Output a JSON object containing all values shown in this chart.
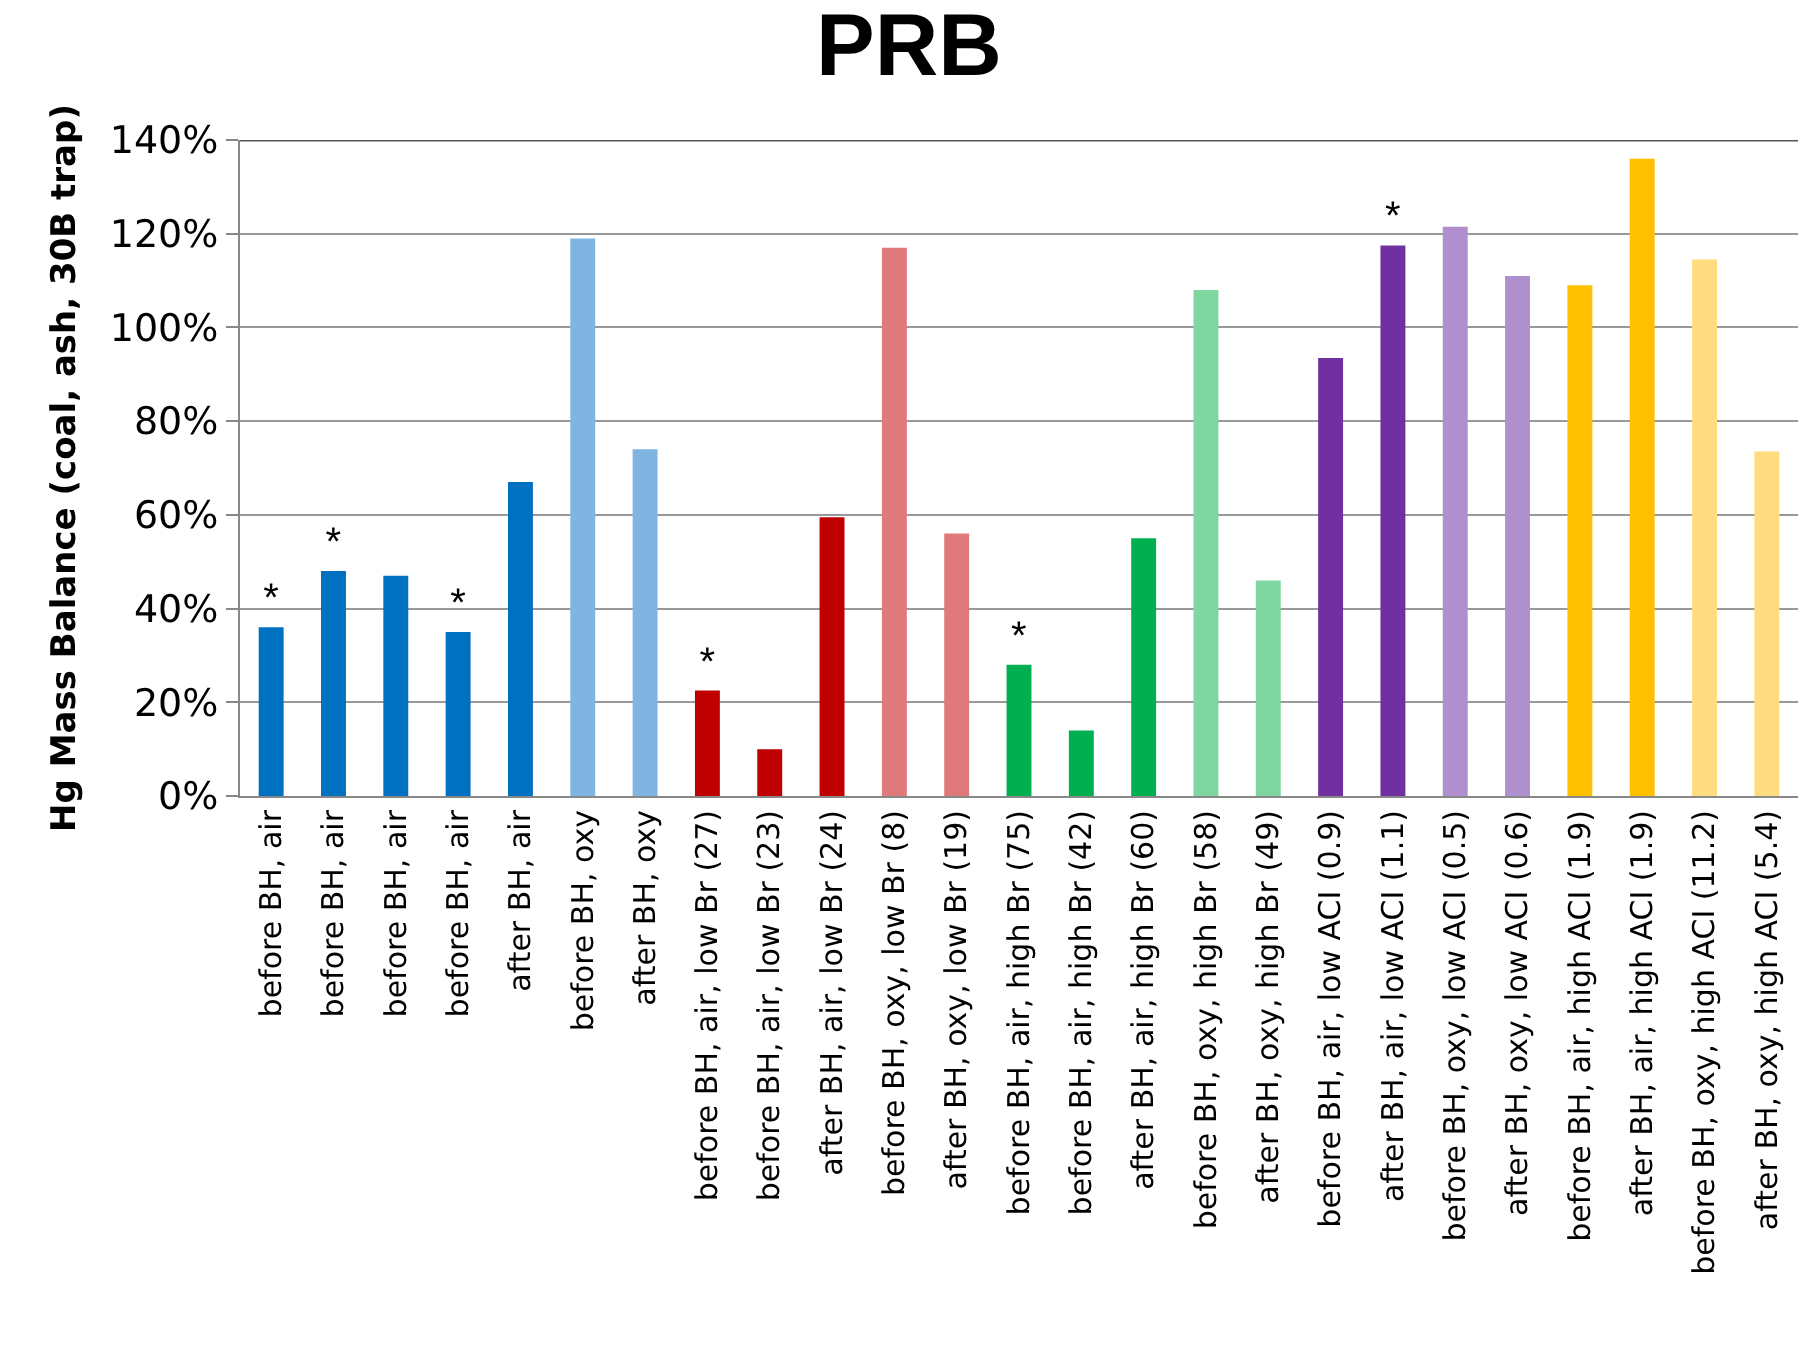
{
  "chart_data": {
    "type": "bar",
    "title": "PRB",
    "ylabel": "Hg Mass Balance (coal, ash, 30B trap)",
    "categories": [
      "before BH, air",
      "before BH, air",
      "before BH, air",
      "before BH, air",
      "after BH, air",
      "before BH, oxy",
      "after BH, oxy",
      "before BH, air, low Br (27)",
      "before BH, air, low Br (23)",
      "after BH, air, low Br (24)",
      "before BH, oxy, low Br (8)",
      "after BH, oxy, low Br (19)",
      "before BH, air, high Br (75)",
      "before BH, air, high Br (42)",
      "after BH, air, high Br (60)",
      "before BH, oxy, high Br (58)",
      "after BH, oxy, high Br (49)",
      "before BH, air, low ACI (0.9)",
      "after BH, air, low ACI (1.1)",
      "before BH, oxy, low ACI (0.5)",
      "after BH, oxy, low ACI (0.6)",
      "before BH, air, high ACI (1.9)",
      "after BH, air, high ACI (1.9)",
      "before BH, oxy, high ACI (11.2)",
      "after BH, oxy, high ACI (5.4)"
    ],
    "values": [
      36,
      48,
      47,
      35,
      67,
      119,
      74,
      22.5,
      10,
      59.5,
      117,
      56,
      28,
      14,
      55,
      108,
      46,
      93.5,
      117.5,
      121.5,
      111,
      109,
      136,
      114.5,
      73.5
    ],
    "value_labels": [
      "*",
      "*",
      null,
      "*",
      null,
      null,
      null,
      "*",
      null,
      null,
      null,
      null,
      "*",
      null,
      null,
      null,
      null,
      null,
      "*",
      null,
      null,
      null,
      null,
      null,
      null
    ],
    "colors": [
      "#0070c0",
      "#0070c0",
      "#0070c0",
      "#0070c0",
      "#0070c0",
      "#7fb5e0",
      "#7fb5e0",
      "#c00000",
      "#c00000",
      "#c00000",
      "#e07a7a",
      "#e07a7a",
      "#00b050",
      "#00b050",
      "#00b050",
      "#7fd6a0",
      "#7fd6a0",
      "#7030a0",
      "#7030a0",
      "#b08fcf",
      "#b08fcf",
      "#ffc000",
      "#ffc000",
      "#ffdc7f",
      "#ffdc7f"
    ],
    "ylim": [
      0,
      140
    ],
    "yticks": [
      {
        "value": 0,
        "label": "0%"
      },
      {
        "value": 20,
        "label": "20%"
      },
      {
        "value": 40,
        "label": "40%"
      },
      {
        "value": 60,
        "label": "60%"
      },
      {
        "value": 80,
        "label": "80%"
      },
      {
        "value": 100,
        "label": "100%"
      },
      {
        "value": 120,
        "label": "120%"
      },
      {
        "value": 140,
        "label": "140%"
      }
    ],
    "grid": "y"
  }
}
